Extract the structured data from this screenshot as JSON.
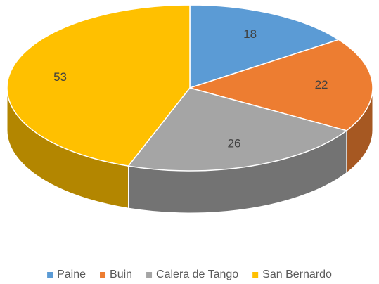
{
  "chart_data": {
    "type": "pie",
    "categories": [
      "Paine",
      "Buin",
      "Calera de Tango",
      "San Bernardo"
    ],
    "values": [
      18,
      22,
      26,
      53
    ],
    "colors": [
      "#5b9bd5",
      "#ed7d31",
      "#a5a5a5",
      "#ffc000"
    ],
    "legend": "bottom"
  }
}
